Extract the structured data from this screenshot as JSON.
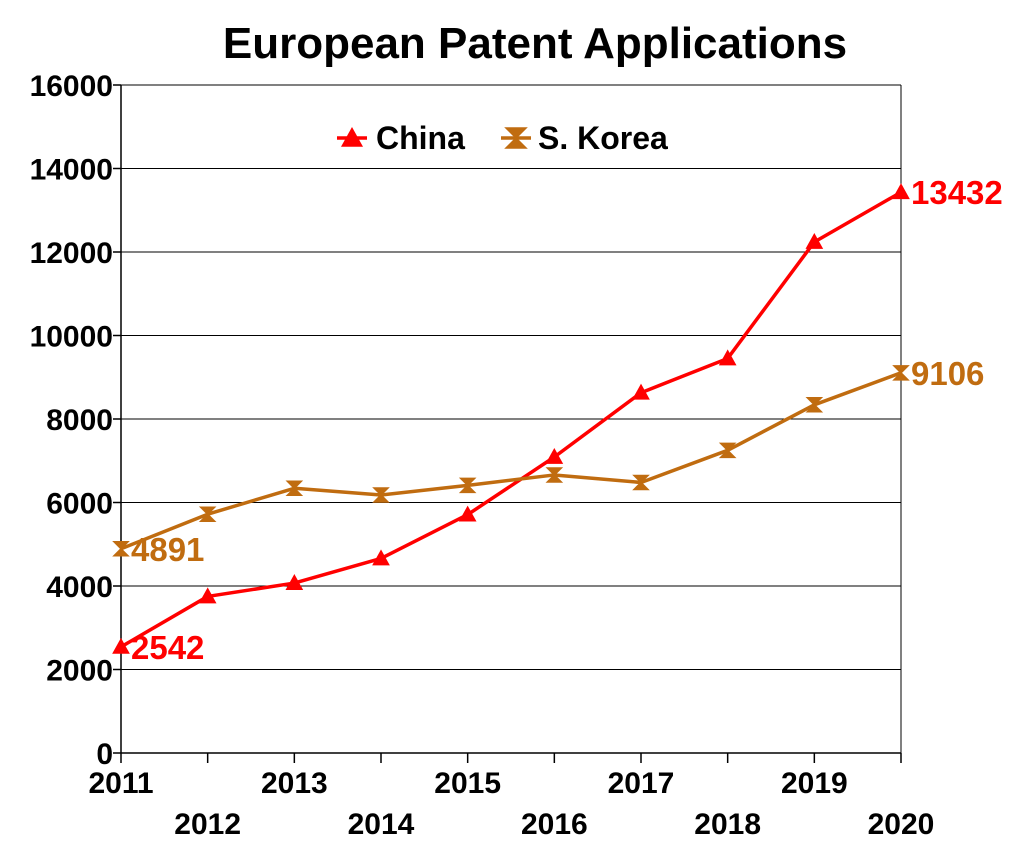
{
  "chart_data": {
    "type": "line",
    "title": "European Patent Applications",
    "xlabel": "",
    "ylabel": "",
    "x": [
      2011,
      2012,
      2013,
      2014,
      2015,
      2016,
      2017,
      2018,
      2019,
      2020
    ],
    "ylim": [
      0,
      16000
    ],
    "yticks": [
      0,
      2000,
      4000,
      6000,
      8000,
      10000,
      12000,
      14000,
      16000
    ],
    "grid": true,
    "legend_position": "top-center",
    "series": [
      {
        "name": "China",
        "color": "#ff0000",
        "marker": "triangle",
        "values": [
          2542,
          3750,
          4070,
          4660,
          5710,
          7090,
          8630,
          9450,
          12240,
          13432
        ]
      },
      {
        "name": "S. Korea",
        "color": "#c06c10",
        "marker": "hourglass",
        "values": [
          4891,
          5720,
          6340,
          6180,
          6410,
          6660,
          6480,
          7250,
          8340,
          9106
        ]
      }
    ],
    "annotations": [
      {
        "series": "China",
        "x": 2011,
        "text": "2542"
      },
      {
        "series": "China",
        "x": 2020,
        "text": "13432"
      },
      {
        "series": "S. Korea",
        "x": 2011,
        "text": "4891"
      },
      {
        "series": "S. Korea",
        "x": 2020,
        "text": "9106"
      }
    ]
  }
}
